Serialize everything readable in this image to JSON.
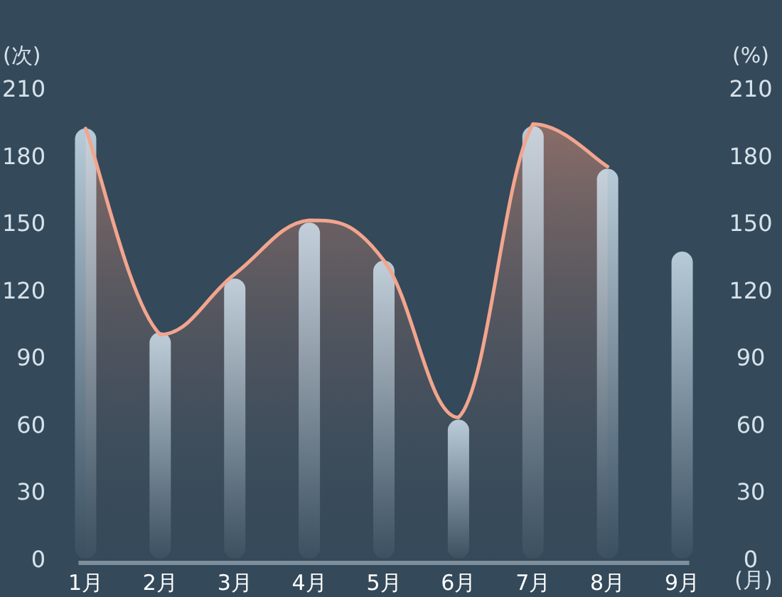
{
  "chart_data": {
    "type": "bar",
    "ylabel": "(次)",
    "y2label": "(%)",
    "xlabel": "(月)",
    "categories": [
      "1月",
      "2月",
      "3月",
      "4月",
      "5月",
      "6月",
      "7月",
      "8月",
      "9月"
    ],
    "ylim": [
      0,
      210
    ],
    "yticks": [
      0,
      30,
      60,
      90,
      120,
      150,
      180,
      210
    ],
    "y2lim": [
      0,
      210
    ],
    "y2ticks": [
      0,
      30,
      60,
      90,
      120,
      150,
      180,
      210
    ],
    "grid": false,
    "series": [
      {
        "color": "#d8ebf8",
        "values": [
          192,
          101,
          125,
          150,
          133,
          62,
          193,
          174,
          137
        ]
      },
      {
        "type": "area",
        "color": "#f2a58e",
        "values": [
          192,
          100,
          127,
          151,
          133,
          63,
          194,
          175,
          null
        ]
      }
    ]
  }
}
